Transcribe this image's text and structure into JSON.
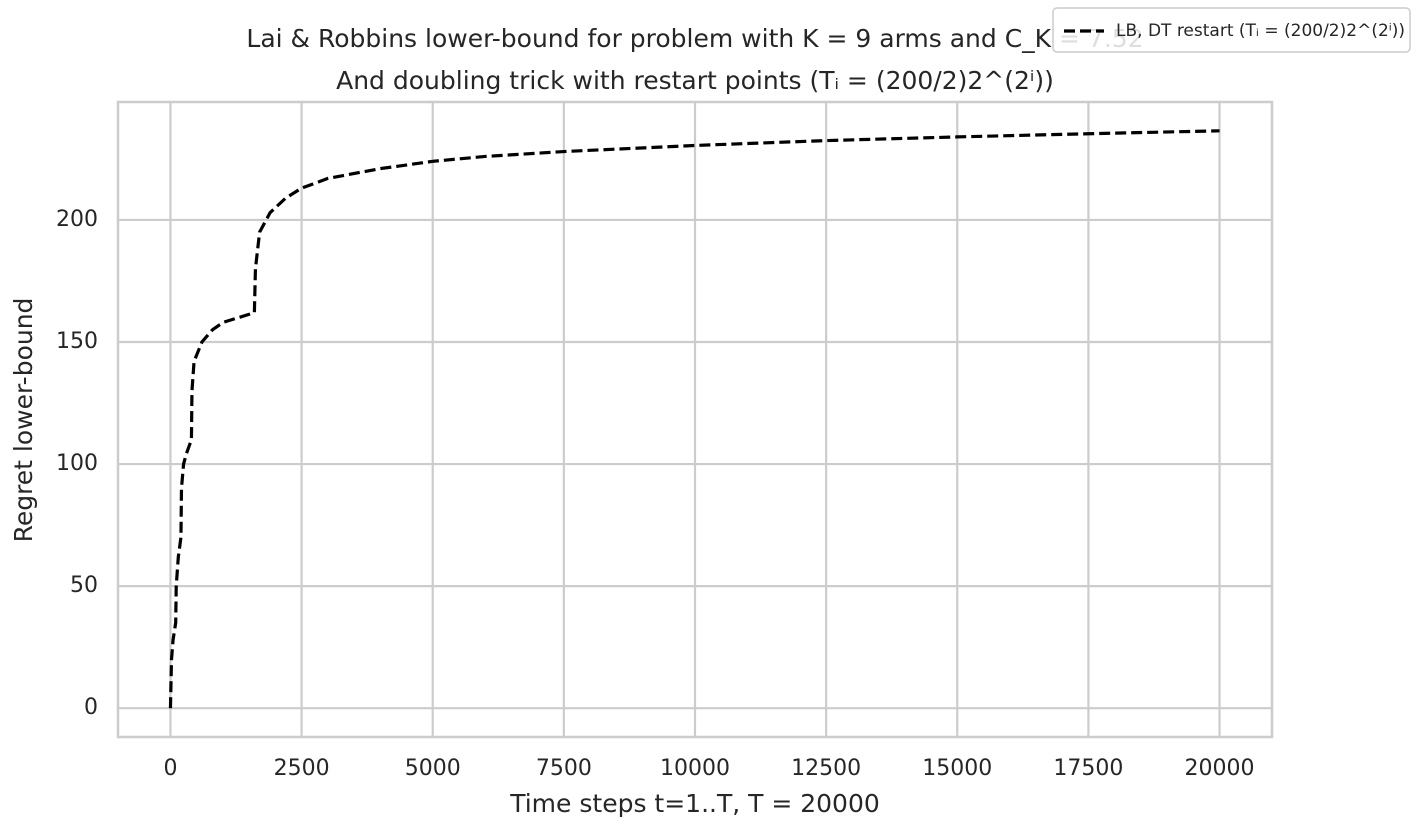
{
  "chart_data": {
    "type": "line",
    "title": "Lai & Robbins lower-bound for problem with K = 9 arms and C_K = 7.52",
    "subtitle": "And doubling trick with restart points (Tᵢ = (200/2)2^(2ⁱ))",
    "xlabel": "Time steps t=1..T, T = 20000",
    "ylabel": "Regret lower-bound",
    "xlim": [
      -1000,
      21000
    ],
    "ylim": [
      -11.8,
      248.3
    ],
    "xticks": [
      0,
      2500,
      5000,
      7500,
      10000,
      12500,
      15000,
      17500,
      20000
    ],
    "yticks": [
      0,
      50,
      100,
      150,
      200
    ],
    "grid": true,
    "legend_position": "upper right",
    "series": [
      {
        "name": "LB, DT restart (Tᵢ = (200/2)2^(2ⁱ))",
        "color": "#000000",
        "dashed": true,
        "x": [
          0,
          20,
          50,
          100,
          110,
          150,
          200,
          210,
          250,
          300,
          400,
          410,
          450,
          600,
          800,
          1000,
          1300,
          1600,
          1620,
          1700,
          1900,
          2200,
          2500,
          3000,
          4000,
          5000,
          6000,
          7500,
          10000,
          12500,
          15000,
          17500,
          20000
        ],
        "values": [
          0,
          20,
          28,
          35,
          50,
          62,
          70,
          90,
          100,
          104,
          110,
          130,
          142,
          150,
          155,
          158,
          160,
          162,
          180,
          195,
          203,
          209,
          213,
          217,
          221,
          224,
          226,
          228,
          230.5,
          232.5,
          234,
          235.3,
          236.5
        ]
      }
    ]
  }
}
